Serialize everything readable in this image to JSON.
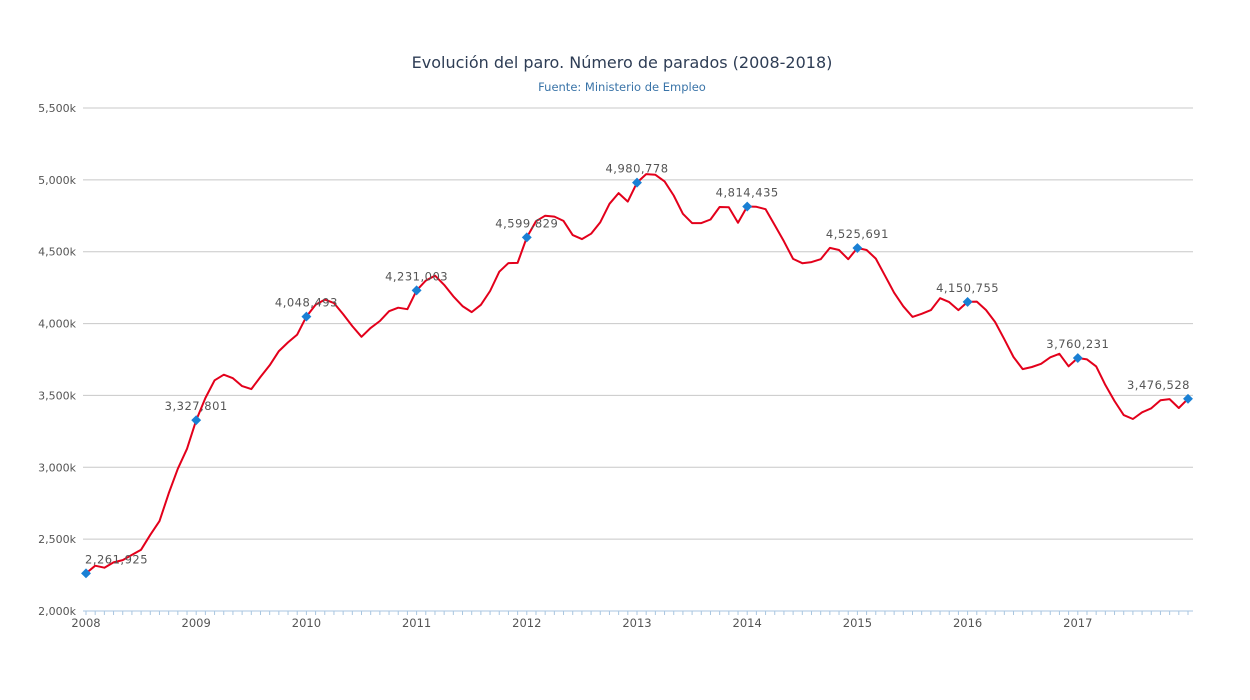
{
  "chart_data": {
    "type": "line",
    "title": "Evolución del paro. Número de parados (2008-2018)",
    "subtitle": "Fuente: Ministerio de Empleo",
    "xlabel": "",
    "ylabel": "",
    "ylim": [
      2000000,
      5500000
    ],
    "yticks": [
      2000000,
      2500000,
      3000000,
      3500000,
      4000000,
      4500000,
      5000000,
      5500000
    ],
    "ytick_labels": [
      "2,000k",
      "2,500k",
      "3,000k",
      "3,500k",
      "4,000k",
      "4,500k",
      "5,000k",
      "5,500k"
    ],
    "xtick_labels": [
      "2008",
      "2009",
      "2010",
      "2011",
      "2012",
      "2013",
      "2014",
      "2015",
      "2016",
      "2017"
    ],
    "x_start": "2008-01",
    "x_step": "month",
    "grid": true,
    "line_color": "#e3001b",
    "marker_color": "#1a80d4",
    "values": [
      2261925,
      2315331,
      2300975,
      2338517,
      2353985,
      2390403,
      2426202,
      2530001,
      2625368,
      2818026,
      2989269,
      3128963,
      3327801,
      3481859,
      3605402,
      3644041,
      3620139,
      3564889,
      3544105,
      3629080,
      3709447,
      3808353,
      3868946,
      3923603,
      4048493,
      4130625,
      4166613,
      4142425,
      4066202,
      3982368,
      3908262,
      3969661,
      4017763,
      4085976,
      4110294,
      4100073,
      4231003,
      4299263,
      4333669,
      4269360,
      4189659,
      4121801,
      4079742,
      4130927,
      4226744,
      4360926,
      4420462,
      4422359,
      4599829,
      4712098,
      4750867,
      4744235,
      4714122,
      4615269,
      4587455,
      4625634,
      4705279,
      4833521,
      4907817,
      4848723,
      4980778,
      5040222,
      5035243,
      4989193,
      4890928,
      4763680,
      4698783,
      4698814,
      4724355,
      4811383,
      4808908,
      4701338,
      4814435,
      4812486,
      4795866,
      4684301,
      4572385,
      4449701,
      4419860,
      4427930,
      4447650,
      4526804,
      4512116,
      4447711,
      4525691,
      4512153,
      4451939,
      4333016,
      4215031,
      4120304,
      4046276,
      4067955,
      4094042,
      4176369,
      4149298,
      4093508,
      4150755,
      4152986,
      4094770,
      4011171,
      3891403,
      3767054,
      3683061,
      3697496,
      3720297,
      3764982,
      3789823,
      3702974,
      3760231,
      3750876,
      3702317,
      3573036,
      3461128,
      3362811,
      3335924,
      3382324,
      3410182,
      3467026,
      3474281,
      3412781,
      3476528
    ],
    "annotations": [
      {
        "index": 0,
        "label": "2,261,925"
      },
      {
        "index": 12,
        "label": "3,327,801"
      },
      {
        "index": 24,
        "label": "4,048,493"
      },
      {
        "index": 36,
        "label": "4,231,003"
      },
      {
        "index": 48,
        "label": "4,599,829"
      },
      {
        "index": 60,
        "label": "4,980,778"
      },
      {
        "index": 72,
        "label": "4,814,435"
      },
      {
        "index": 84,
        "label": "4,525,691"
      },
      {
        "index": 96,
        "label": "4,150,755"
      },
      {
        "index": 108,
        "label": "3,760,231"
      },
      {
        "index": 120,
        "label": "3,476,528"
      }
    ]
  }
}
